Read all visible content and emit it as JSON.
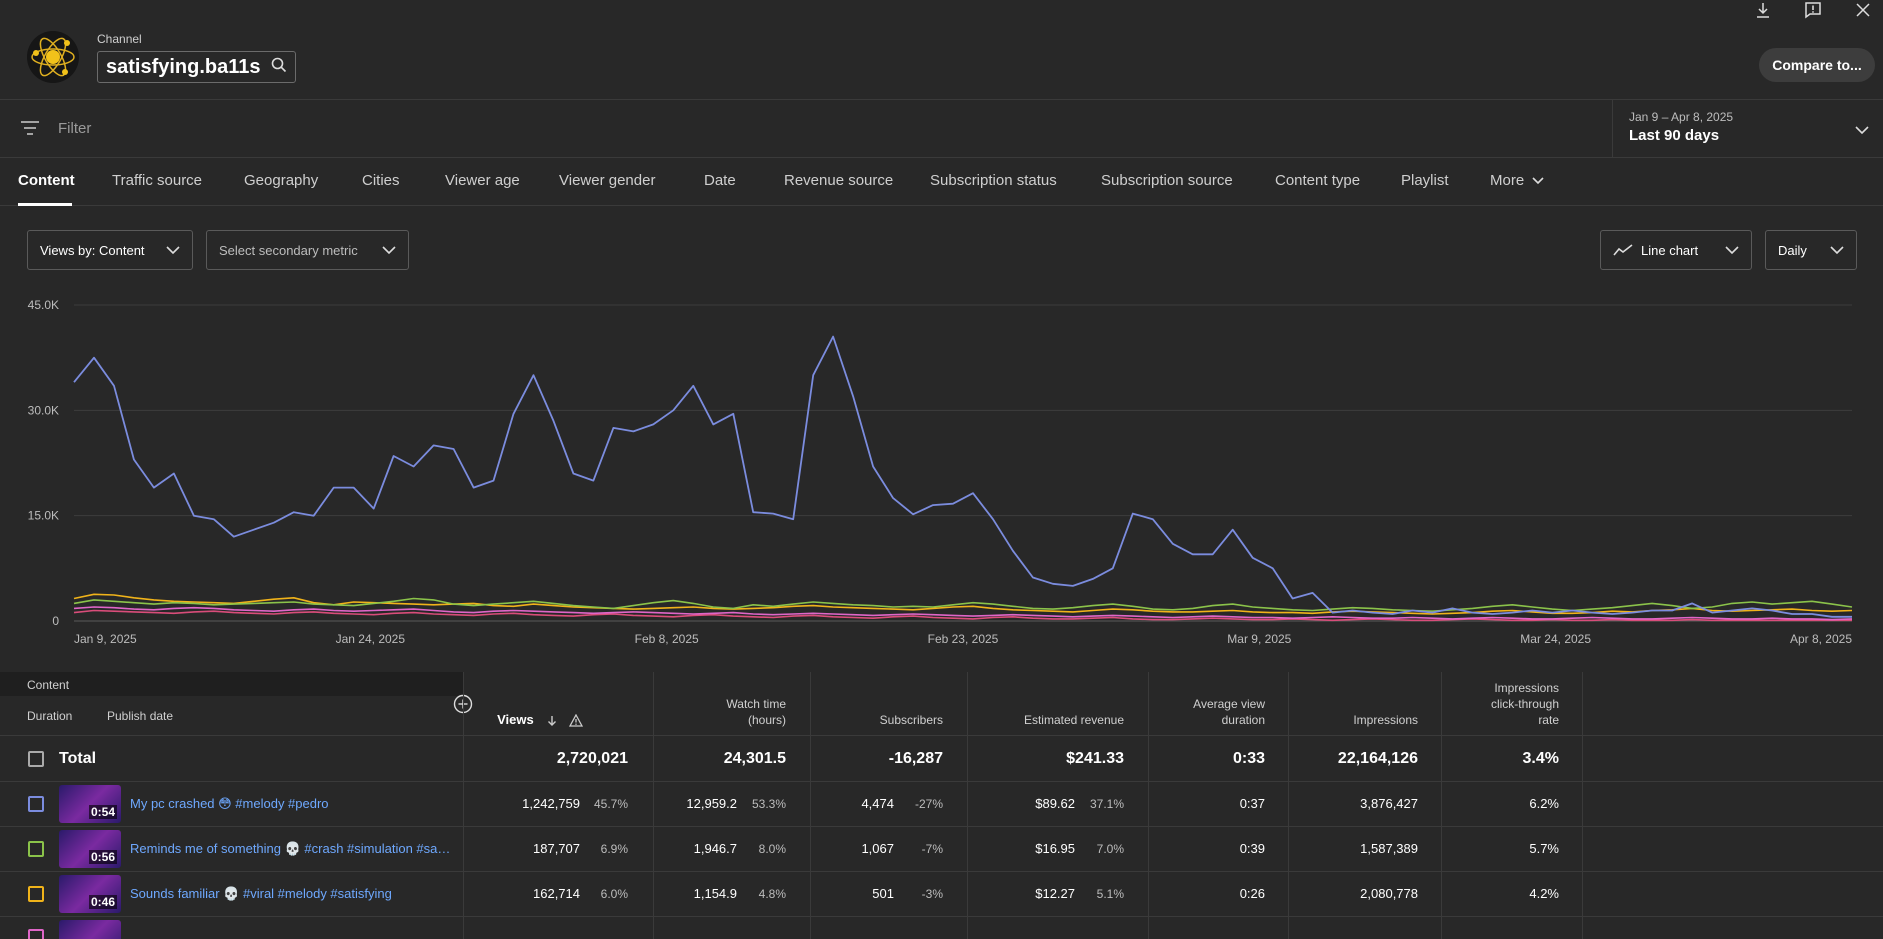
{
  "header": {
    "channel_label": "Channel",
    "channel_name": "satisfying.ba11s",
    "compare_label": "Compare to..."
  },
  "filter": {
    "placeholder": "Filter"
  },
  "date_range": {
    "range": "Jan 9 – Apr 8, 2025",
    "label": "Last 90 days"
  },
  "tabs": [
    "Content",
    "Traffic source",
    "Geography",
    "Cities",
    "Viewer age",
    "Viewer gender",
    "Date",
    "Revenue source",
    "Subscription status",
    "Subscription source",
    "Content type",
    "Playlist",
    "More"
  ],
  "controls": {
    "primary_metric": "Views by: Content",
    "secondary_metric": "Select secondary metric",
    "chart_type": "Line chart",
    "granularity": "Daily"
  },
  "colors": {
    "accent": "#6ea8fe",
    "series": [
      "#7b8cde",
      "#8bc34a",
      "#f0b31a",
      "#e066c8",
      "#d94d7a"
    ]
  },
  "chart_data": {
    "type": "line",
    "y_ticks": [
      "45.0K",
      "30.0K",
      "15.0K",
      "0"
    ],
    "ylim": [
      0,
      45000
    ],
    "x_ticks": [
      "Jan 9, 2025",
      "Jan 24, 2025",
      "Feb 8, 2025",
      "Feb 23, 2025",
      "Mar 9, 2025",
      "Mar 24, 2025",
      "Apr 8, 2025"
    ],
    "x_count": 90,
    "series": [
      {
        "values": [
          34000,
          37500,
          33500,
          23000,
          19000,
          21000,
          15000,
          14500,
          12000,
          13000,
          14000,
          15500,
          15000,
          19000,
          19000,
          16000,
          23500,
          22000,
          25000,
          24500,
          19000,
          20000,
          29500,
          35000,
          28500,
          21000,
          20000,
          27500,
          27000,
          28000,
          30000,
          33500,
          28000,
          29500,
          15500,
          15300,
          14500,
          35000,
          40500,
          32000,
          22000,
          17500,
          15200,
          16500,
          16700,
          18200,
          14500,
          10000,
          6200,
          5300,
          5000,
          6000,
          7500,
          15300,
          14500,
          11000,
          9500,
          9500,
          13000,
          9000,
          7500,
          3200,
          4000,
          1200,
          1500,
          1200,
          1000,
          1500,
          1200,
          1800,
          1200,
          1000,
          1200,
          1500,
          1200,
          1500,
          1200,
          1000,
          1200,
          1500,
          1500,
          2500,
          1200,
          1500,
          1800,
          1500,
          1000,
          1000,
          600,
          600
        ]
      },
      {
        "values": [
          2500,
          3000,
          2800,
          2600,
          2400,
          2600,
          2500,
          2300,
          2400,
          2500,
          2600,
          2700,
          2400,
          2300,
          2200,
          2500,
          2800,
          3200,
          3000,
          2400,
          2200,
          2400,
          2600,
          2800,
          2500,
          2200,
          2000,
          1800,
          2200,
          2600,
          2900,
          2500,
          2000,
          1800,
          2300,
          2100,
          2400,
          2700,
          2500,
          2300,
          2200,
          2000,
          2100,
          2000,
          2300,
          2600,
          2400,
          2100,
          1800,
          1700,
          1900,
          2200,
          2400,
          2100,
          1700,
          1600,
          1800,
          2200,
          2400,
          2000,
          1800,
          1600,
          1500,
          1700,
          1900,
          1800,
          1600,
          1500,
          1400,
          1600,
          1800,
          2100,
          2300,
          2000,
          1700,
          1500,
          1700,
          1900,
          2200,
          2500,
          2200,
          1800,
          2000,
          2500,
          2700,
          2400,
          2600,
          2800,
          2400,
          2000
        ]
      },
      {
        "values": [
          3200,
          3800,
          3700,
          3300,
          3000,
          2800,
          2700,
          2600,
          2500,
          2800,
          3100,
          3300,
          2600,
          2300,
          2700,
          2600,
          2500,
          2400,
          2300,
          2400,
          2500,
          2200,
          2100,
          2400,
          2200,
          2000,
          1900,
          1800,
          1700,
          1800,
          1900,
          2000,
          1800,
          1700,
          1800,
          1900,
          2100,
          2200,
          2000,
          1900,
          1800,
          1700,
          1600,
          1800,
          2000,
          2100,
          1800,
          1600,
          1500,
          1400,
          1300,
          1500,
          1700,
          1600,
          1400,
          1300,
          1300,
          1400,
          1500,
          1300,
          1200,
          1200,
          1100,
          1300,
          1400,
          1300,
          1200,
          1100,
          1000,
          1100,
          1200,
          1400,
          1500,
          1300,
          1100,
          1100,
          1200,
          1400,
          1300,
          1500,
          1600,
          1800,
          1500,
          1400,
          1500,
          1600,
          1700,
          1500,
          1400,
          1500
        ]
      },
      {
        "values": [
          1800,
          2000,
          1900,
          1700,
          1600,
          1800,
          1900,
          1800,
          1600,
          1500,
          1400,
          1600,
          1700,
          1500,
          1400,
          1500,
          1600,
          1700,
          1500,
          1300,
          1200,
          1400,
          1500,
          1400,
          1300,
          1200,
          1100,
          1200,
          1300,
          1200,
          1100,
          1000,
          1100,
          1200,
          1000,
          900,
          1000,
          1100,
          1000,
          900,
          800,
          900,
          1000,
          900,
          800,
          700,
          800,
          900,
          800,
          700,
          600,
          700,
          800,
          700,
          600,
          500,
          600,
          700,
          600,
          500,
          500,
          400,
          500,
          600,
          500,
          400,
          400,
          500,
          400,
          300,
          400,
          500,
          400,
          300,
          300,
          400,
          500,
          400,
          300,
          300,
          400,
          500,
          400,
          300,
          300,
          400,
          300,
          300,
          200,
          300
        ]
      },
      {
        "values": [
          1200,
          1500,
          1400,
          1300,
          1200,
          1100,
          1300,
          1400,
          1200,
          1100,
          1000,
          1200,
          1300,
          1100,
          1000,
          900,
          1100,
          1200,
          1000,
          900,
          800,
          1000,
          1100,
          900,
          800,
          700,
          900,
          1000,
          800,
          700,
          600,
          800,
          900,
          700,
          600,
          500,
          700,
          800,
          600,
          500,
          400,
          600,
          700,
          500,
          400,
          300,
          500,
          600,
          400,
          300,
          300,
          400,
          500,
          300,
          200,
          200,
          300,
          400,
          300,
          200,
          200,
          300,
          200,
          100,
          200,
          300,
          200,
          100,
          100,
          200,
          300,
          200,
          100,
          100,
          200,
          100,
          100,
          200,
          100,
          100,
          100,
          200,
          100,
          100,
          100,
          100,
          100,
          100,
          100,
          100
        ]
      }
    ]
  },
  "table": {
    "header_content": "Content",
    "header_duration": "Duration",
    "header_publish": "Publish date",
    "columns": [
      {
        "l1": "",
        "l2": "",
        "l3": "Views"
      },
      {
        "l1": "",
        "l2": "Watch time",
        "l3": "(hours)"
      },
      {
        "l1": "",
        "l2": "",
        "l3": "Subscribers"
      },
      {
        "l1": "",
        "l2": "",
        "l3": "Estimated revenue"
      },
      {
        "l1": "",
        "l2": "Average view",
        "l3": "duration"
      },
      {
        "l1": "",
        "l2": "",
        "l3": "Impressions"
      },
      {
        "l1": "Impressions",
        "l2": "click-through",
        "l3": "rate"
      }
    ],
    "total": {
      "label": "Total",
      "views": "2,720,021",
      "watch": "24,301.5",
      "subs": "-16,287",
      "revenue": "$241.33",
      "avd": "0:33",
      "impressions": "22,164,126",
      "ctr": "3.4%"
    },
    "rows": [
      {
        "duration": "0:54",
        "title": "My pc crashed 😳 #melody #pedro",
        "views": "1,242,759",
        "views_pct": "45.7%",
        "watch": "12,959.2",
        "watch_pct": "53.3%",
        "subs": "4,474",
        "subs_pct": "-27%",
        "revenue": "$89.62",
        "rev_pct": "37.1%",
        "avd": "0:37",
        "impressions": "3,876,427",
        "ctr": "6.2%"
      },
      {
        "duration": "0:56",
        "title": "Reminds me of something 💀 #crash #simulation #sa…",
        "views": "187,707",
        "views_pct": "6.9%",
        "watch": "1,946.7",
        "watch_pct": "8.0%",
        "subs": "1,067",
        "subs_pct": "-7%",
        "revenue": "$16.95",
        "rev_pct": "7.0%",
        "avd": "0:39",
        "impressions": "1,587,389",
        "ctr": "5.7%"
      },
      {
        "duration": "0:46",
        "title": "Sounds familiar 💀 #viral #melody #satisfying",
        "views": "162,714",
        "views_pct": "6.0%",
        "watch": "1,154.9",
        "watch_pct": "4.8%",
        "subs": "501",
        "subs_pct": "-3%",
        "revenue": "$12.27",
        "rev_pct": "5.1%",
        "avd": "0:26",
        "impressions": "2,080,778",
        "ctr": "4.2%"
      }
    ]
  }
}
